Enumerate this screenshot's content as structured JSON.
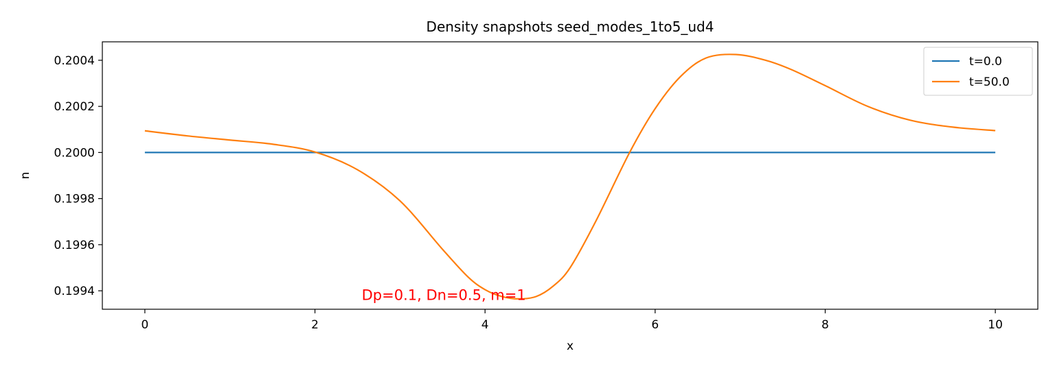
{
  "chart_data": {
    "type": "line",
    "title": "Density snapshots  seed_modes_1to5_ud4",
    "xlabel": "x",
    "ylabel": "n",
    "xlim": [
      -0.5,
      10.5
    ],
    "ylim": [
      0.19932,
      0.20048
    ],
    "xticks": [
      0,
      2,
      4,
      6,
      8,
      10
    ],
    "xtick_labels": [
      "0",
      "2",
      "4",
      "6",
      "8",
      "10"
    ],
    "yticks": [
      0.1994,
      0.1996,
      0.1998,
      0.2,
      0.2002,
      0.2004
    ],
    "ytick_labels": [
      "0.1994",
      "0.1996",
      "0.1998",
      "0.2000",
      "0.2002",
      "0.2004"
    ],
    "grid": false,
    "legend_position": "top-right",
    "series": [
      {
        "name": "t=0.0",
        "color": "#1f77b4",
        "x": [
          0,
          10
        ],
        "y": [
          0.2,
          0.2
        ]
      },
      {
        "name": "t=50.0",
        "color": "#ff7f0e",
        "x": [
          0,
          0.5,
          1.0,
          1.5,
          2.0,
          2.5,
          3.0,
          3.5,
          3.8,
          4.0,
          4.2,
          4.4,
          4.6,
          4.8,
          5.0,
          5.3,
          5.7,
          6.0,
          6.3,
          6.6,
          6.95,
          7.3,
          7.6,
          8.0,
          8.5,
          9.0,
          9.5,
          10.0
        ],
        "y": [
          0.200094,
          0.200072,
          0.200054,
          0.200036,
          0.200002,
          0.199925,
          0.19979,
          0.19958,
          0.19946,
          0.199405,
          0.199375,
          0.199365,
          0.199375,
          0.19942,
          0.1995,
          0.1997,
          0.2,
          0.20019,
          0.20033,
          0.20041,
          0.200425,
          0.2004,
          0.20036,
          0.20029,
          0.2002,
          0.20014,
          0.20011,
          0.200095
        ]
      }
    ],
    "annotation": {
      "text": "Dp=0.1, Dn=0.5, m=1",
      "color": "#ff0000",
      "x": 2.55,
      "y": 0.19936
    }
  }
}
